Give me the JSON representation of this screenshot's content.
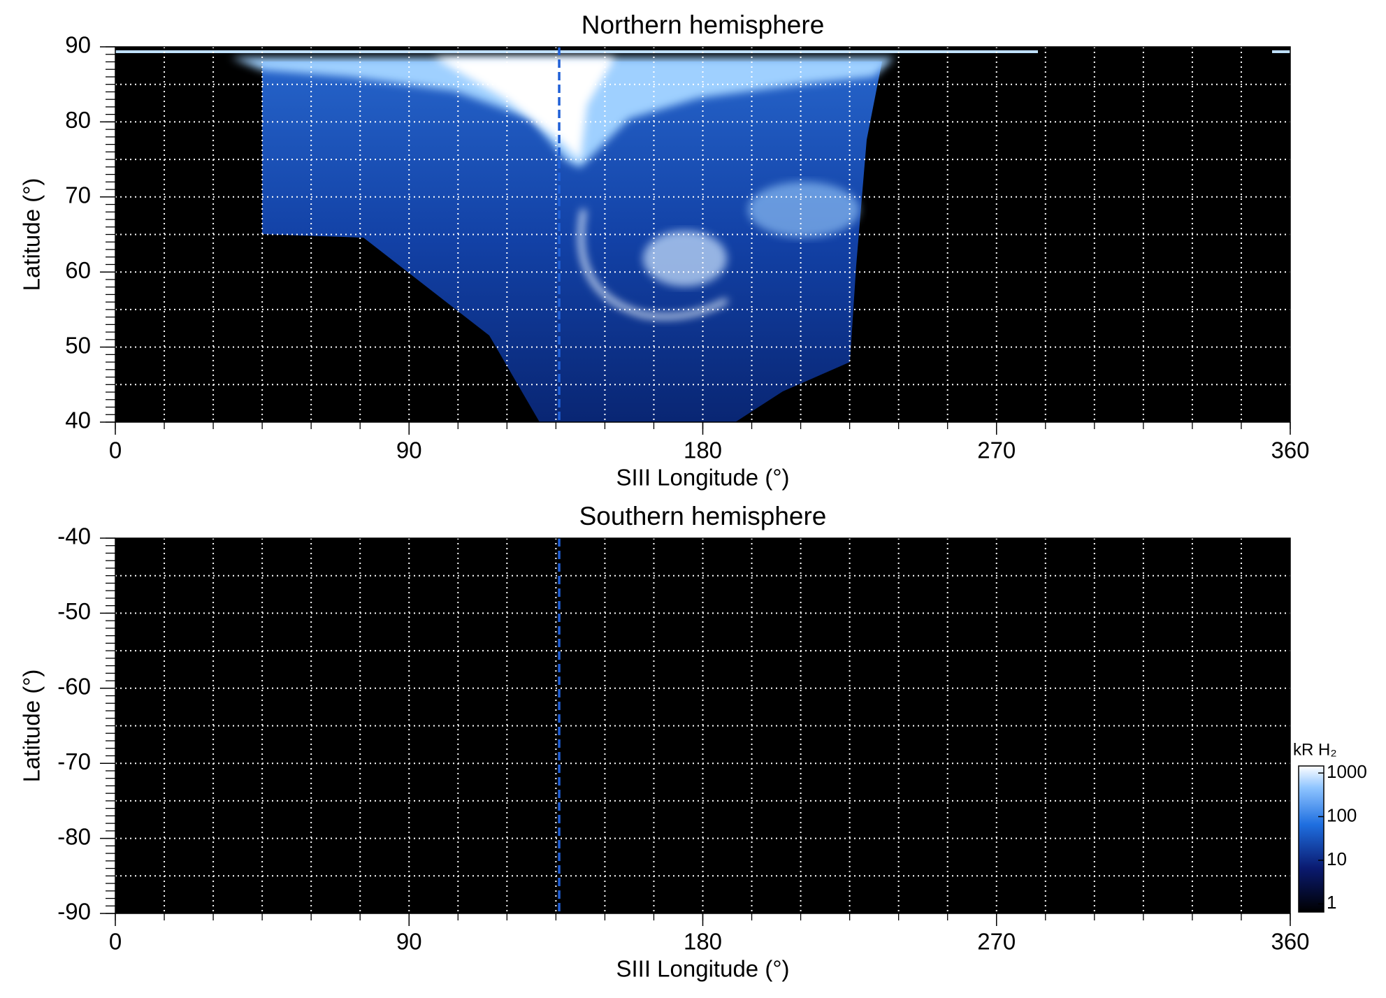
{
  "chart_data": [
    {
      "type": "heatmap",
      "title": "Northern hemisphere",
      "xlabel": "SIII Longitude (°)",
      "ylabel": "Latitude (°)",
      "xlim": [
        0,
        360
      ],
      "xticks": [
        0,
        90,
        180,
        270,
        360
      ],
      "ylim": [
        40,
        90
      ],
      "yticks": [
        40,
        50,
        60,
        70,
        80,
        90
      ],
      "x_grid_step": 15,
      "y_grid_step": 5,
      "y_minor_step": 1,
      "marker_x": 136,
      "marker_color": "#1f5fd6",
      "background": "#000000",
      "grid_color": "#ffffff"
    },
    {
      "type": "heatmap",
      "title": "Southern hemisphere",
      "xlabel": "SIII Longitude (°)",
      "ylabel": "Latitude (°)",
      "xlim": [
        0,
        360
      ],
      "xticks": [
        0,
        90,
        180,
        270,
        360
      ],
      "ylim": [
        -90,
        -40
      ],
      "yticks": [
        -90,
        -80,
        -70,
        -60,
        -50,
        -40
      ],
      "x_grid_step": 15,
      "y_grid_step": 5,
      "y_minor_step": 1,
      "marker_x": 136,
      "marker_color": "#1f5fd6",
      "background": "#000000",
      "grid_color": "#ffffff",
      "colorbar": {
        "label": "kR H₂",
        "log": true,
        "lim": [
          0.65,
          1450
        ],
        "ticks": [
          1,
          10,
          100,
          1000
        ]
      }
    }
  ]
}
